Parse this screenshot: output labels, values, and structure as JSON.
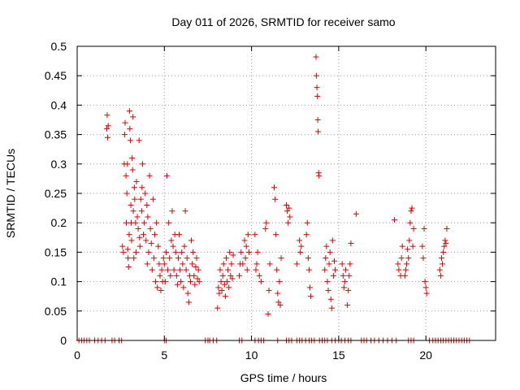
{
  "chart_data": {
    "type": "scatter",
    "title": "Day 011 of 2026, SRMTID for receiver samo",
    "xlabel": "GPS time / hours",
    "ylabel": "SRMTID / TECUs",
    "xlim": [
      0,
      24
    ],
    "ylim": [
      0,
      0.5
    ],
    "xticks": [
      0,
      5,
      10,
      15,
      20
    ],
    "xtick_labels": [
      "0",
      "5",
      "10",
      "15",
      "20"
    ],
    "yticks": [
      0,
      0.05,
      0.1,
      0.15,
      0.2,
      0.25,
      0.3,
      0.35,
      0.4,
      0.45,
      0.5
    ],
    "ytick_labels": [
      "0",
      "0.05",
      "0.1",
      "0.15",
      "0.2",
      "0.25",
      "0.3",
      "0.35",
      "0.4",
      "0.45",
      "0.5"
    ],
    "grid": true,
    "marker": "+",
    "marker_color": "#e00000",
    "series": [
      {
        "name": "SRMTID",
        "points": [
          [
            1.7,
            0.36
          ],
          [
            1.72,
            0.383
          ],
          [
            1.75,
            0.345
          ],
          [
            1.78,
            0.365
          ],
          [
            2.6,
            0.16
          ],
          [
            2.65,
            0.15
          ],
          [
            2.7,
            0.3
          ],
          [
            2.72,
            0.35
          ],
          [
            2.75,
            0.37
          ],
          [
            2.8,
            0.28
          ],
          [
            2.82,
            0.2
          ],
          [
            2.85,
            0.25
          ],
          [
            2.88,
            0.3
          ],
          [
            2.9,
            0.155
          ],
          [
            2.92,
            0.14
          ],
          [
            2.95,
            0.125
          ],
          [
            2.98,
            0.18
          ],
          [
            3.0,
            0.39
          ],
          [
            3.02,
            0.36
          ],
          [
            3.05,
            0.34
          ],
          [
            3.08,
            0.23
          ],
          [
            3.1,
            0.2
          ],
          [
            3.12,
            0.17
          ],
          [
            3.15,
            0.31
          ],
          [
            3.18,
            0.29
          ],
          [
            3.2,
            0.38
          ],
          [
            3.22,
            0.22
          ],
          [
            3.25,
            0.14
          ],
          [
            3.28,
            0.26
          ],
          [
            3.3,
            0.24
          ],
          [
            3.35,
            0.2
          ],
          [
            3.38,
            0.15
          ],
          [
            3.4,
            0.27
          ],
          [
            3.45,
            0.21
          ],
          [
            3.5,
            0.19
          ],
          [
            3.55,
            0.34
          ],
          [
            3.58,
            0.175
          ],
          [
            3.6,
            0.16
          ],
          [
            3.65,
            0.24
          ],
          [
            3.7,
            0.22
          ],
          [
            3.72,
            0.26
          ],
          [
            3.75,
            0.3
          ],
          [
            3.8,
            0.18
          ],
          [
            3.85,
            0.2
          ],
          [
            3.9,
            0.25
          ],
          [
            3.95,
            0.17
          ],
          [
            4.0,
            0.23
          ],
          [
            4.02,
            0.13
          ],
          [
            4.05,
            0.21
          ],
          [
            4.1,
            0.15
          ],
          [
            4.15,
            0.28
          ],
          [
            4.2,
            0.19
          ],
          [
            4.25,
            0.165
          ],
          [
            4.3,
            0.12
          ],
          [
            4.35,
            0.24
          ],
          [
            4.4,
            0.14
          ],
          [
            4.45,
            0.18
          ],
          [
            4.5,
            0.1
          ],
          [
            4.55,
            0.2
          ],
          [
            4.6,
            0.09
          ],
          [
            4.65,
            0.16
          ],
          [
            4.7,
            0.13
          ],
          [
            4.75,
            0.11
          ],
          [
            4.8,
            0.085
          ],
          [
            4.85,
            0.12
          ],
          [
            4.9,
            0.1
          ],
          [
            4.95,
            0.14
          ],
          [
            5.0,
            0.13
          ],
          [
            5.05,
            0.1
          ],
          [
            5.1,
            0.15
          ],
          [
            5.15,
            0.28
          ],
          [
            5.2,
            0.12
          ],
          [
            5.25,
            0.2
          ],
          [
            5.3,
            0.14
          ],
          [
            5.35,
            0.11
          ],
          [
            5.4,
            0.17
          ],
          [
            5.45,
            0.22
          ],
          [
            5.5,
            0.16
          ],
          [
            5.55,
            0.12
          ],
          [
            5.6,
            0.18
          ],
          [
            5.65,
            0.15
          ],
          [
            5.7,
            0.11
          ],
          [
            5.75,
            0.095
          ],
          [
            5.8,
            0.14
          ],
          [
            5.85,
            0.18
          ],
          [
            5.9,
            0.12
          ],
          [
            5.95,
            0.1
          ],
          [
            6.0,
            0.15
          ],
          [
            6.05,
            0.13
          ],
          [
            6.1,
            0.09
          ],
          [
            6.15,
            0.16
          ],
          [
            6.2,
            0.22
          ],
          [
            6.25,
            0.12
          ],
          [
            6.3,
            0.14
          ],
          [
            6.35,
            0.08
          ],
          [
            6.4,
            0.065
          ],
          [
            6.45,
            0.11
          ],
          [
            6.5,
            0.1
          ],
          [
            6.55,
            0.17
          ],
          [
            6.6,
            0.13
          ],
          [
            6.65,
            0.15
          ],
          [
            6.7,
            0.11
          ],
          [
            6.75,
            0.095
          ],
          [
            6.8,
            0.125
          ],
          [
            6.85,
            0.14
          ],
          [
            6.9,
            0.105
          ],
          [
            6.95,
            0.12
          ],
          [
            7.0,
            0.1
          ],
          [
            8.05,
            0.055
          ],
          [
            8.1,
            0.09
          ],
          [
            8.15,
            0.08
          ],
          [
            8.2,
            0.12
          ],
          [
            8.25,
            0.1
          ],
          [
            8.3,
            0.085
          ],
          [
            8.35,
            0.11
          ],
          [
            8.4,
            0.13
          ],
          [
            8.45,
            0.095
          ],
          [
            8.5,
            0.075
          ],
          [
            8.55,
            0.14
          ],
          [
            8.6,
            0.1
          ],
          [
            8.65,
            0.12
          ],
          [
            8.7,
            0.09
          ],
          [
            8.75,
            0.15
          ],
          [
            8.8,
            0.11
          ],
          [
            8.85,
            0.13
          ],
          [
            8.9,
            0.105
          ],
          [
            8.95,
            0.145
          ],
          [
            9.3,
            0.11
          ],
          [
            9.35,
            0.13
          ],
          [
            9.4,
            0.15
          ],
          [
            9.5,
            0.13
          ],
          [
            9.6,
            0.17
          ],
          [
            9.65,
            0.14
          ],
          [
            9.7,
            0.16
          ],
          [
            9.75,
            0.12
          ],
          [
            9.8,
            0.18
          ],
          [
            9.85,
            0.15
          ],
          [
            10.2,
            0.18
          ],
          [
            10.25,
            0.12
          ],
          [
            10.3,
            0.13
          ],
          [
            10.35,
            0.15
          ],
          [
            10.45,
            0.11
          ],
          [
            10.55,
            0.1
          ],
          [
            10.8,
            0.19
          ],
          [
            10.85,
            0.2
          ],
          [
            10.95,
            0.045
          ],
          [
            11.0,
            0.085
          ],
          [
            11.05,
            0.13
          ],
          [
            11.3,
            0.26
          ],
          [
            11.35,
            0.24
          ],
          [
            11.4,
            0.18
          ],
          [
            11.45,
            0.12
          ],
          [
            11.5,
            0.08
          ],
          [
            11.55,
            0.065
          ],
          [
            11.6,
            0.1
          ],
          [
            11.65,
            0.06
          ],
          [
            11.7,
            0.14
          ],
          [
            12.0,
            0.23
          ],
          [
            12.05,
            0.22
          ],
          [
            12.1,
            0.2
          ],
          [
            12.15,
            0.225
          ],
          [
            12.2,
            0.21
          ],
          [
            12.6,
            0.13
          ],
          [
            12.75,
            0.17
          ],
          [
            12.8,
            0.15
          ],
          [
            12.85,
            0.16
          ],
          [
            13.15,
            0.18
          ],
          [
            13.2,
            0.2
          ],
          [
            13.25,
            0.14
          ],
          [
            13.3,
            0.12
          ],
          [
            13.35,
            0.09
          ],
          [
            13.4,
            0.075
          ],
          [
            13.7,
            0.482
          ],
          [
            13.72,
            0.45
          ],
          [
            13.75,
            0.43
          ],
          [
            13.78,
            0.415
          ],
          [
            13.8,
            0.375
          ],
          [
            13.82,
            0.355
          ],
          [
            13.85,
            0.285
          ],
          [
            13.87,
            0.28
          ],
          [
            14.2,
            0.12
          ],
          [
            14.25,
            0.14
          ],
          [
            14.3,
            0.16
          ],
          [
            14.35,
            0.1
          ],
          [
            14.4,
            0.085
          ],
          [
            14.45,
            0.13
          ],
          [
            14.5,
            0.15
          ],
          [
            14.55,
            0.07
          ],
          [
            14.6,
            0.055
          ],
          [
            14.65,
            0.17
          ],
          [
            14.7,
            0.11
          ],
          [
            14.75,
            0.135
          ],
          [
            14.8,
            0.12
          ],
          [
            15.2,
            0.13
          ],
          [
            15.25,
            0.11
          ],
          [
            15.3,
            0.09
          ],
          [
            15.35,
            0.1
          ],
          [
            15.4,
            0.12
          ],
          [
            15.5,
            0.06
          ],
          [
            15.55,
            0.085
          ],
          [
            15.6,
            0.11
          ],
          [
            15.65,
            0.13
          ],
          [
            15.7,
            0.165
          ],
          [
            16.0,
            0.215
          ],
          [
            18.2,
            0.205
          ],
          [
            18.4,
            0.13
          ],
          [
            18.45,
            0.12
          ],
          [
            18.55,
            0.11
          ],
          [
            18.6,
            0.14
          ],
          [
            18.65,
            0.16
          ],
          [
            18.8,
            0.11
          ],
          [
            18.85,
            0.12
          ],
          [
            18.9,
            0.13
          ],
          [
            18.95,
            0.155
          ],
          [
            19.0,
            0.14
          ],
          [
            19.05,
            0.17
          ],
          [
            19.1,
            0.2
          ],
          [
            19.15,
            0.22
          ],
          [
            19.2,
            0.225
          ],
          [
            19.25,
            0.16
          ],
          [
            19.3,
            0.19
          ],
          [
            19.8,
            0.16
          ],
          [
            19.85,
            0.14
          ],
          [
            19.9,
            0.19
          ],
          [
            19.95,
            0.1
          ],
          [
            20.0,
            0.09
          ],
          [
            20.05,
            0.08
          ],
          [
            20.8,
            0.12
          ],
          [
            20.85,
            0.11
          ],
          [
            20.9,
            0.14
          ],
          [
            20.95,
            0.13
          ],
          [
            21.0,
            0.15
          ],
          [
            21.05,
            0.16
          ],
          [
            21.1,
            0.17
          ],
          [
            21.15,
            0.165
          ],
          [
            21.2,
            0.19
          ]
        ],
        "zero_points": [
          0.1,
          0.25,
          0.4,
          0.55,
          0.7,
          1.0,
          1.2,
          1.4,
          1.6,
          2.0,
          2.15,
          2.4,
          2.55,
          5.0,
          5.1,
          7.35,
          7.5,
          7.6,
          7.8,
          8.0,
          9.3,
          9.45,
          10.2,
          10.4,
          10.55,
          10.7,
          11.5,
          12.0,
          12.15,
          12.3,
          12.6,
          12.75,
          12.9,
          13.1,
          13.3,
          13.45,
          13.6,
          13.9,
          14.05,
          14.2,
          14.35,
          14.6,
          14.8,
          15.0,
          15.15,
          15.35,
          15.55,
          15.7,
          16.3,
          16.45,
          16.6,
          16.85,
          17.05,
          17.3,
          17.55,
          17.8,
          18.05,
          18.3,
          19.0,
          19.15,
          19.3,
          20.2,
          20.4,
          20.55,
          20.7,
          20.85,
          21.0,
          21.15,
          21.3,
          21.45,
          21.6,
          21.75,
          21.9,
          22.05,
          22.2,
          22.35,
          22.5
        ]
      }
    ]
  }
}
